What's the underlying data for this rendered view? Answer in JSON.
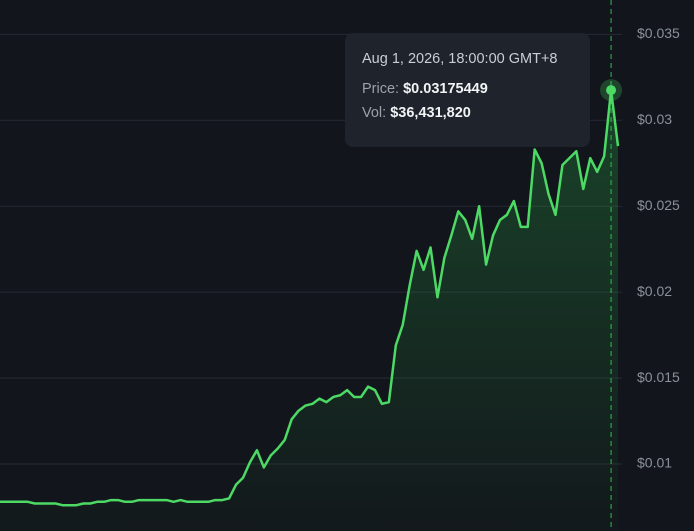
{
  "chart_data": {
    "type": "line",
    "color": "#4cd964",
    "ylim": [
      0.0061,
      0.037
    ],
    "yticks": [
      {
        "value": 0.01,
        "label": "$0.01"
      },
      {
        "value": 0.015,
        "label": "$0.015"
      },
      {
        "value": 0.02,
        "label": "$0.02"
      },
      {
        "value": 0.025,
        "label": "$0.025"
      },
      {
        "value": 0.03,
        "label": "$0.03"
      },
      {
        "value": 0.035,
        "label": "$0.035"
      }
    ],
    "grid": true,
    "values": [
      0.0078,
      0.0078,
      0.0078,
      0.0078,
      0.0078,
      0.0077,
      0.0077,
      0.0077,
      0.0077,
      0.0076,
      0.0076,
      0.0076,
      0.0077,
      0.0077,
      0.0078,
      0.0078,
      0.0079,
      0.0079,
      0.0078,
      0.0078,
      0.0079,
      0.0079,
      0.0079,
      0.0079,
      0.0079,
      0.0078,
      0.0079,
      0.0078,
      0.0078,
      0.0078,
      0.0078,
      0.0079,
      0.0079,
      0.008,
      0.0088,
      0.0092,
      0.0101,
      0.0108,
      0.0098,
      0.0105,
      0.0109,
      0.0114,
      0.0126,
      0.0131,
      0.0134,
      0.0135,
      0.0138,
      0.0136,
      0.0139,
      0.014,
      0.0143,
      0.0139,
      0.0139,
      0.0145,
      0.0143,
      0.0135,
      0.0136,
      0.0169,
      0.0181,
      0.0204,
      0.0224,
      0.0213,
      0.0226,
      0.0197,
      0.022,
      0.0233,
      0.0247,
      0.0242,
      0.0231,
      0.025,
      0.0216,
      0.0233,
      0.0242,
      0.0245,
      0.0253,
      0.0238,
      0.0238,
      0.0283,
      0.0275,
      0.0257,
      0.0245,
      0.0274,
      0.0278,
      0.0282,
      0.026,
      0.0278,
      0.027,
      0.0279,
      0.03175449,
      0.0285
    ],
    "tooltip": {
      "date": "Aug 1, 2026, 18:00:00 GMT+8",
      "price": {
        "label": "Price:",
        "value": 0.03175449,
        "value_label": "$0.03175449"
      },
      "volume": {
        "label": "Vol:",
        "value": 36431820,
        "value_label": "$36,431,820"
      }
    }
  }
}
